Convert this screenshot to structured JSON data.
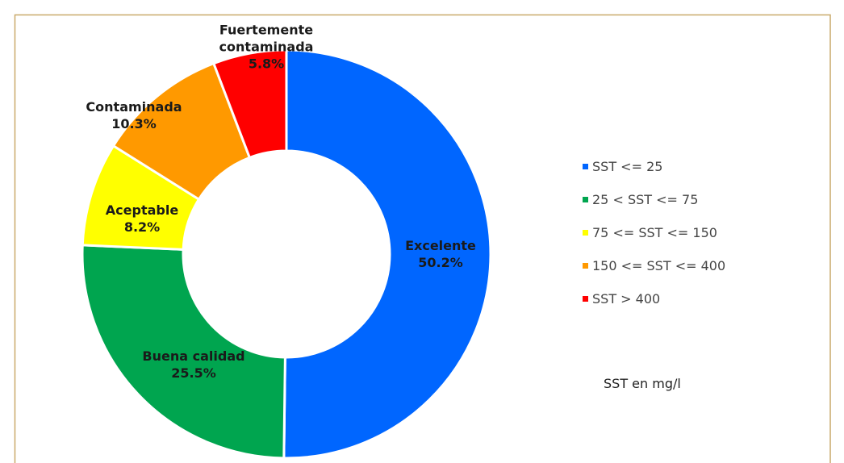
{
  "chart_data": {
    "type": "donut",
    "categories": [
      "Excelente",
      "Buena calidad",
      "Aceptable",
      "Contaminada",
      "Fuertemente contaminada"
    ],
    "values": [
      50.2,
      25.5,
      8.2,
      10.3,
      5.8
    ],
    "value_labels": [
      "50.2%",
      "25.5%",
      "8.2%",
      "10.3%",
      "5.8%"
    ],
    "colors": [
      "#0066ff",
      "#00a54f",
      "#ffff00",
      "#ff9900",
      "#ff0000"
    ],
    "legend": [
      "SST <= 25",
      "25 < SST <= 75",
      "75 <= SST <= 150",
      "150 <= SST <= 400",
      "SST > 400"
    ],
    "note": "SST en mg/l"
  }
}
